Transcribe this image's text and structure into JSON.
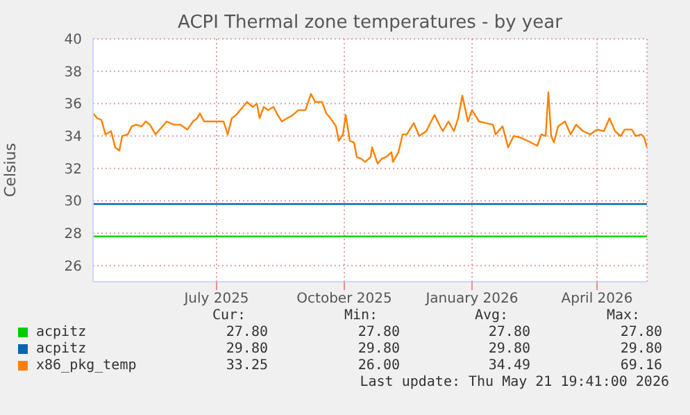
{
  "chart_data": {
    "type": "line",
    "title": "ACPI Thermal zone temperatures - by year",
    "ylabel": "Celsius",
    "xlim": [
      "2025-04-03",
      "2026-05-07"
    ],
    "xticks": [
      {
        "value": "2025-07-01",
        "label": "July 2025"
      },
      {
        "value": "2025-10-01",
        "label": "October 2025"
      },
      {
        "value": "2026-01-01",
        "label": "January 2026"
      },
      {
        "value": "2026-04-01",
        "label": "April 2026"
      }
    ],
    "ylim": [
      25,
      40
    ],
    "yticks": [
      26,
      28,
      30,
      32,
      34,
      36,
      38,
      40
    ],
    "grid": true,
    "legend": "bottom left",
    "marker": "none",
    "line_style": "solid",
    "series": [
      {
        "name": "acpitz",
        "color": "#00cc00",
        "x": [
          "2025-04-03",
          "2026-05-07"
        ],
        "values": [
          27.8,
          27.8
        ]
      },
      {
        "name": "acpitz",
        "color": "#0066b3",
        "x": [
          "2025-04-03",
          "2026-05-07"
        ],
        "values": [
          29.8,
          29.8
        ]
      },
      {
        "name": "x86_pkg_temp",
        "color": "#ff8000",
        "x": [
          "2025-04-03",
          "2025-04-06",
          "2025-04-09",
          "2025-04-12",
          "2025-04-16",
          "2025-04-19",
          "2025-04-22",
          "2025-04-24",
          "2025-04-28",
          "2025-05-01",
          "2025-05-04",
          "2025-05-08",
          "2025-05-11",
          "2025-05-14",
          "2025-05-18",
          "2025-05-21",
          "2025-05-26",
          "2025-05-31",
          "2025-06-05",
          "2025-06-10",
          "2025-06-14",
          "2025-06-17",
          "2025-06-19",
          "2025-06-22",
          "2025-06-27",
          "2025-07-02",
          "2025-07-06",
          "2025-07-09",
          "2025-07-12",
          "2025-07-15",
          "2025-07-18",
          "2025-07-23",
          "2025-07-27",
          "2025-07-30",
          "2025-08-01",
          "2025-08-04",
          "2025-08-07",
          "2025-08-11",
          "2025-08-14",
          "2025-08-17",
          "2025-08-21",
          "2025-08-25",
          "2025-08-29",
          "2025-09-03",
          "2025-09-07",
          "2025-09-10",
          "2025-09-15",
          "2025-09-18",
          "2025-09-21",
          "2025-09-25",
          "2025-09-27",
          "2025-09-30",
          "2025-10-02",
          "2025-10-05",
          "2025-10-08",
          "2025-10-10",
          "2025-10-13",
          "2025-10-16",
          "2025-10-20",
          "2025-10-21",
          "2025-10-25",
          "2025-10-28",
          "2025-10-31",
          "2025-11-04",
          "2025-11-05",
          "2025-11-09",
          "2025-11-12",
          "2025-11-15",
          "2025-11-20",
          "2025-11-24",
          "2025-11-29",
          "2025-12-05",
          "2025-12-09",
          "2025-12-11",
          "2025-12-15",
          "2025-12-19",
          "2025-12-22",
          "2025-12-25",
          "2025-12-29",
          "2026-01-01",
          "2026-01-06",
          "2026-01-11",
          "2026-01-16",
          "2026-01-18",
          "2026-01-23",
          "2026-01-27",
          "2026-01-31",
          "2026-02-05",
          "2026-02-10",
          "2026-02-17",
          "2026-02-20",
          "2026-02-23",
          "2026-02-25",
          "2026-02-27",
          "2026-03-01",
          "2026-03-04",
          "2026-03-09",
          "2026-03-13",
          "2026-03-17",
          "2026-03-22",
          "2026-03-27",
          "2026-04-01",
          "2026-04-06",
          "2026-04-10",
          "2026-04-14",
          "2026-04-18",
          "2026-04-21",
          "2026-04-26",
          "2026-04-29",
          "2026-05-03",
          "2026-05-05",
          "2026-05-07"
        ],
        "values": [
          35.4,
          35.1,
          35.0,
          34.1,
          34.3,
          33.3,
          33.1,
          34.0,
          34.1,
          34.6,
          34.7,
          34.6,
          34.9,
          34.7,
          34.1,
          34.4,
          34.9,
          34.7,
          34.7,
          34.4,
          34.9,
          35.1,
          35.4,
          34.9,
          34.9,
          34.9,
          34.9,
          34.1,
          35.1,
          35.3,
          35.6,
          36.1,
          35.8,
          36.0,
          35.1,
          35.8,
          35.6,
          35.8,
          35.3,
          34.9,
          35.1,
          35.3,
          35.6,
          35.6,
          36.6,
          36.1,
          36.1,
          35.4,
          35.1,
          34.6,
          33.7,
          34.1,
          35.3,
          33.7,
          33.6,
          32.7,
          32.6,
          32.4,
          32.7,
          33.3,
          32.3,
          32.6,
          32.7,
          33.0,
          32.4,
          33.0,
          34.1,
          34.1,
          34.8,
          34.0,
          34.3,
          35.3,
          34.6,
          34.3,
          34.9,
          34.3,
          35.1,
          36.5,
          34.9,
          35.6,
          34.9,
          34.8,
          34.7,
          34.1,
          34.6,
          33.3,
          34.0,
          33.9,
          33.7,
          33.4,
          34.1,
          34.0,
          36.7,
          34.0,
          33.6,
          34.6,
          34.9,
          34.1,
          34.7,
          34.3,
          34.1,
          34.4,
          34.3,
          35.1,
          34.3,
          34.0,
          34.4,
          34.4,
          34.0,
          34.1,
          33.9,
          33.3
        ]
      }
    ],
    "annotations": [
      "Cur:",
      "Min:",
      "Avg:",
      "Max:",
      "27.80",
      "27.80",
      "27.80",
      "27.80",
      "29.80",
      "29.80",
      "29.80",
      "29.80",
      "33.25",
      "26.00",
      "34.49",
      "69.16",
      "Last update: Thu May 21 19:41:00 2026"
    ]
  }
}
